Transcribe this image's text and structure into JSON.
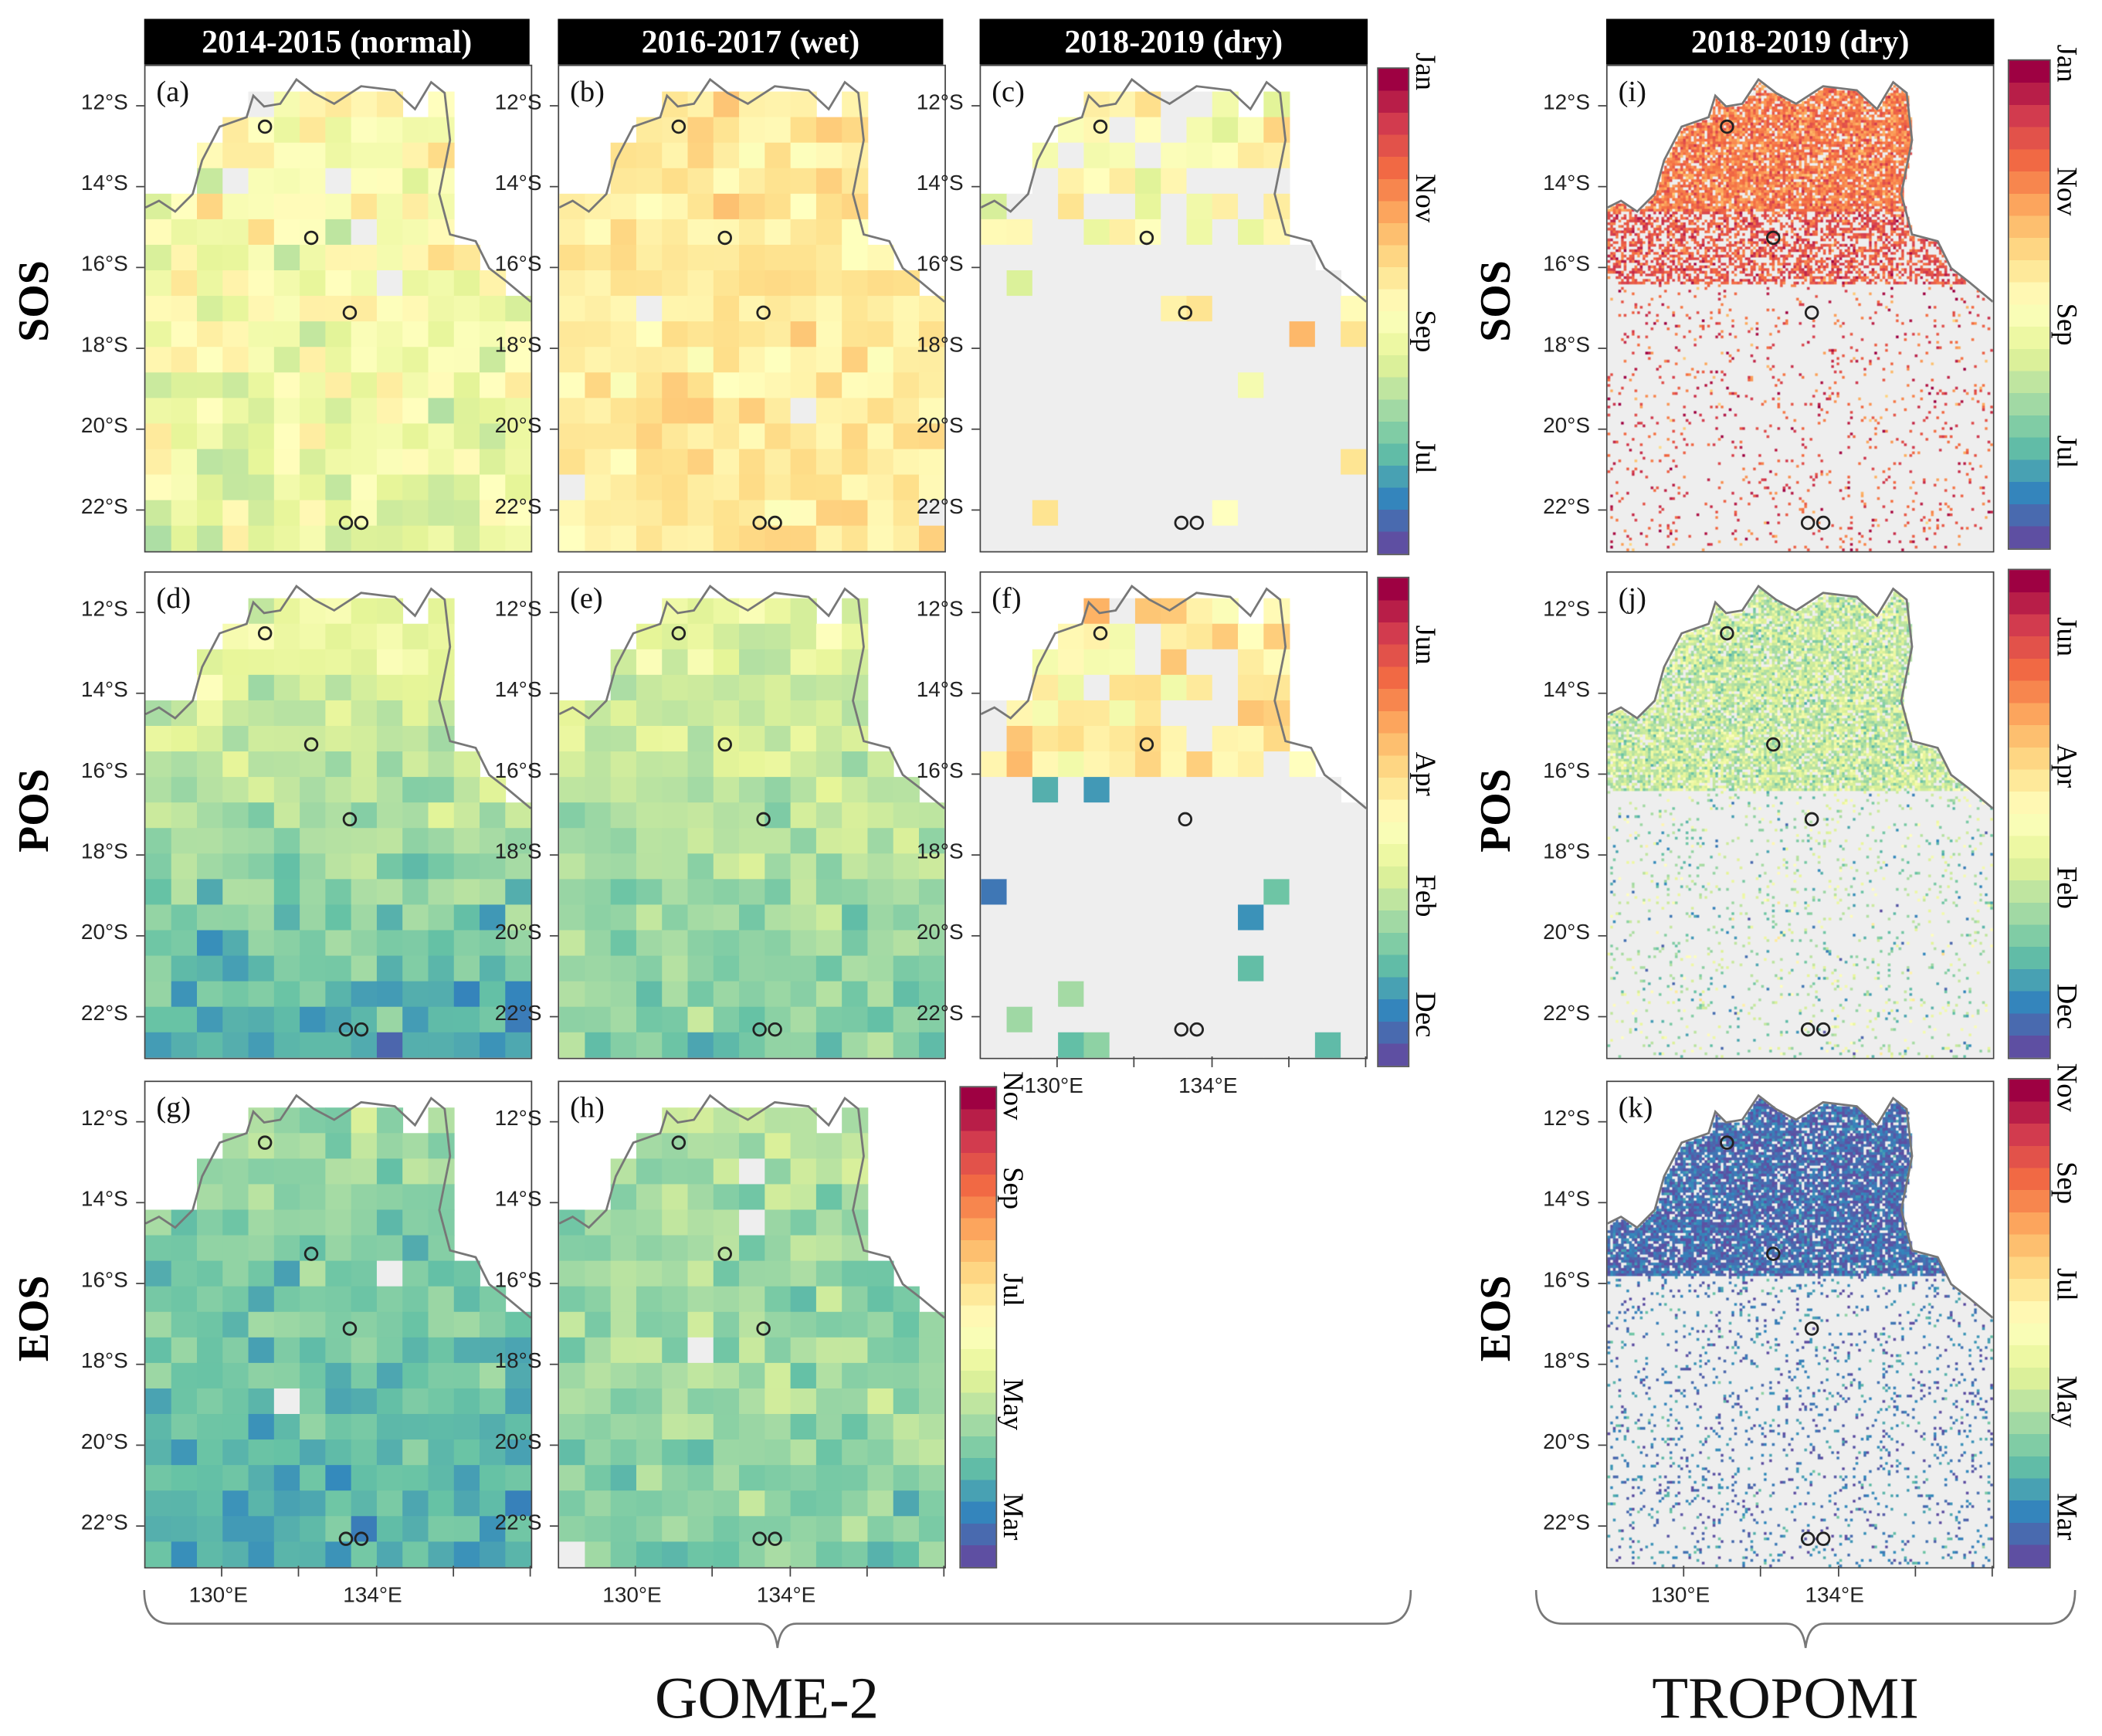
{
  "headers": {
    "col1": "2014-2015 (normal)",
    "col2": "2016-2017 (wet)",
    "col3": "2018-2019 (dry)",
    "col4": "2018-2019 (dry)"
  },
  "row_labels": {
    "sos": "SOS",
    "pos": "POS",
    "eos": "EOS"
  },
  "panel_labels": {
    "a": "(a)",
    "b": "(b)",
    "c": "(c)",
    "d": "(d)",
    "e": "(e)",
    "f": "(f)",
    "g": "(g)",
    "h": "(h)",
    "i": "(i)",
    "j": "(j)",
    "k": "(k)"
  },
  "lat_ticks": [
    "12°S",
    "14°S",
    "16°S",
    "18°S",
    "20°S",
    "22°S"
  ],
  "lon_ticks": [
    "130°E",
    "134°E"
  ],
  "colorbars": {
    "sos": [
      "Jan",
      "Nov",
      "Sep",
      "Jul"
    ],
    "pos": [
      "Jun",
      "Apr",
      "Feb",
      "Dec"
    ],
    "eos": [
      "Nov",
      "Sep",
      "Jul",
      "May",
      "Mar"
    ]
  },
  "groups": {
    "gome": "GOME-2",
    "tropomi": "TROPOMI"
  },
  "chart_data": {
    "type": "heatmap",
    "extent": {
      "lon": [
        128,
        138
      ],
      "lat": [
        -23,
        -11
      ]
    },
    "colormap": [
      "#5e4fa2",
      "#3288bd",
      "#66c2a5",
      "#abdda4",
      "#e6f598",
      "#ffffbf",
      "#fee08b",
      "#fdae61",
      "#f46d43",
      "#d53e4f",
      "#9e0142"
    ],
    "no_data_color": "#eeeeee",
    "land_outline_color": "#777777",
    "sites": [
      {
        "lon": 131.1,
        "lat": -12.5
      },
      {
        "lon": 132.3,
        "lat": -15.25
      },
      {
        "lon": 133.3,
        "lat": -17.1
      },
      {
        "lon": 133.2,
        "lat": -22.3
      },
      {
        "lon": 133.6,
        "lat": -22.3
      }
    ]
  }
}
